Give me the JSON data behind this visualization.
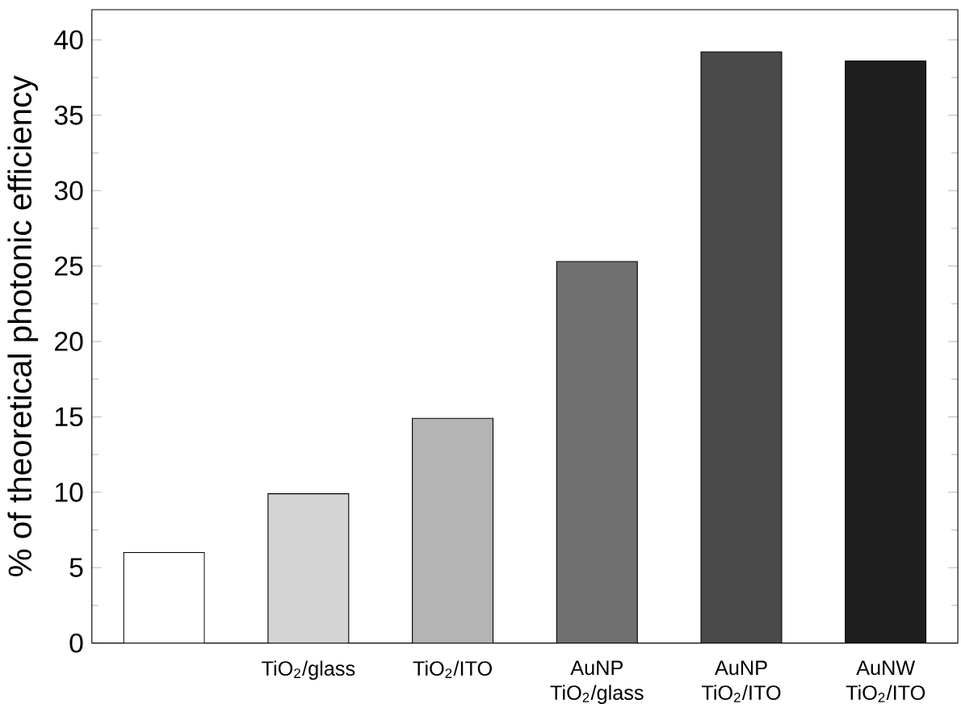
{
  "chart_data": {
    "type": "bar",
    "ylabel": "% of theoretical photonic efficiency",
    "categories": [
      null,
      "TiO$_{2}$/glass",
      "TiO$_{2}$/ITO",
      "AuNP TiO$_{2}$/glass",
      "AuNP TiO$_{2}$/ITO",
      "AuNW TiO$_{2}$/ITO"
    ],
    "values": [
      6,
      9.9,
      14.9,
      25.3,
      39.2,
      38.6
    ],
    "colors": [
      "#ffffff",
      "#d4d4d4",
      "#b4b4b4",
      "#707070",
      "#4a4a4a",
      "#1e1e1e"
    ],
    "ylim": [
      0,
      42
    ],
    "yticks": [
      0,
      5,
      10,
      15,
      20,
      25,
      30,
      35,
      40
    ],
    "grid": false
  }
}
